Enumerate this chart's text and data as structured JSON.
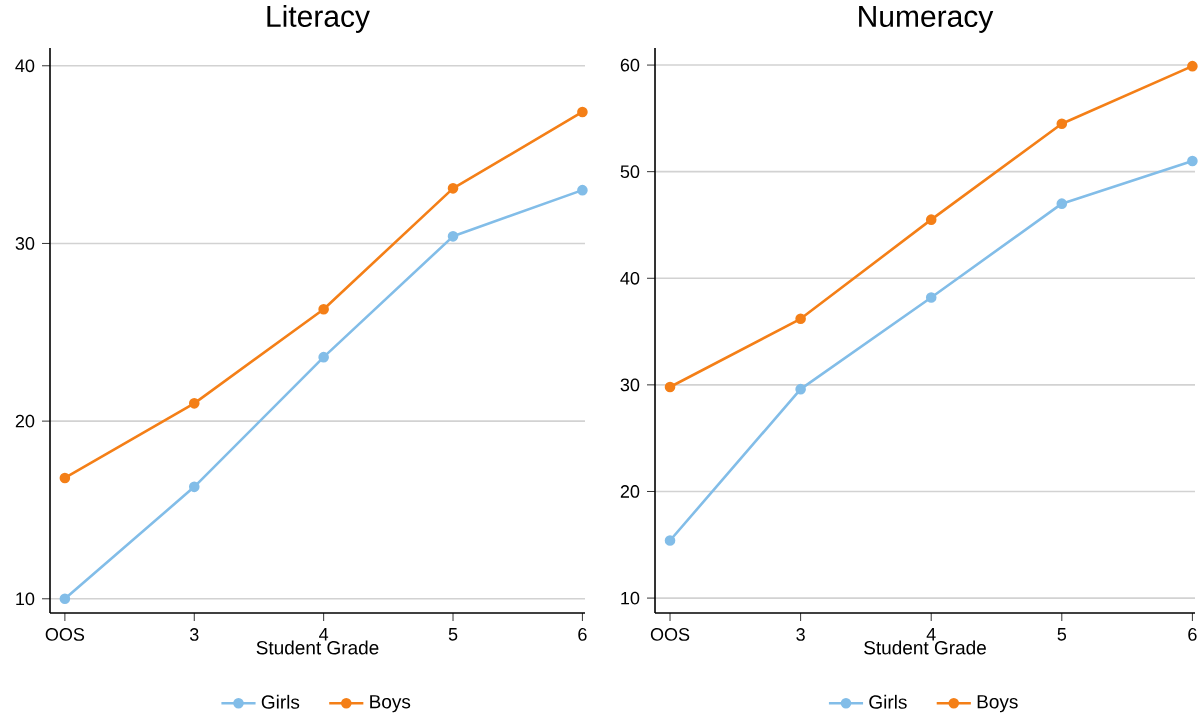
{
  "chart_data": [
    {
      "type": "line",
      "title": "Literacy",
      "xlabel": "Student Grade",
      "categories": [
        "OOS",
        "3",
        "4",
        "5",
        "6"
      ],
      "series": [
        {
          "name": "Girls",
          "color": "#82bde8",
          "values": [
            10.0,
            16.3,
            23.6,
            30.4,
            33.0
          ]
        },
        {
          "name": "Boys",
          "color": "#f47f17",
          "values": [
            16.8,
            21.0,
            26.3,
            33.1,
            37.4
          ]
        }
      ],
      "ylim": [
        9.2,
        41
      ],
      "yticks": [
        10,
        20,
        30,
        40
      ],
      "grid": "y",
      "legend": "bottom",
      "marker": "circle",
      "line_style": "solid"
    },
    {
      "type": "line",
      "title": "Numeracy",
      "xlabel": "Student Grade",
      "categories": [
        "OOS",
        "3",
        "4",
        "5",
        "6"
      ],
      "series": [
        {
          "name": "Girls",
          "color": "#82bde8",
          "values": [
            15.4,
            29.6,
            38.2,
            47.0,
            51.0
          ]
        },
        {
          "name": "Boys",
          "color": "#f47f17",
          "values": [
            29.8,
            36.2,
            45.5,
            54.5,
            59.9
          ]
        }
      ],
      "ylim": [
        8.6,
        61.6
      ],
      "yticks": [
        10,
        20,
        30,
        40,
        50,
        60
      ],
      "grid": "y",
      "legend": "bottom",
      "marker": "circle",
      "line_style": "solid"
    }
  ]
}
